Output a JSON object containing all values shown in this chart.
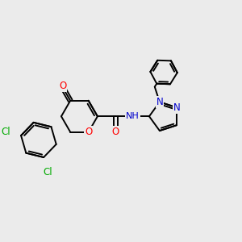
{
  "background_color": "#ebebeb",
  "bond_color": "#000000",
  "bond_width": 1.4,
  "atom_colors": {
    "O": "#ff0000",
    "N": "#0000cc",
    "Cl": "#00aa00",
    "H": "#000000"
  },
  "font_size": 8.5,
  "fig_size": [
    3.0,
    3.0
  ],
  "dpi": 100
}
